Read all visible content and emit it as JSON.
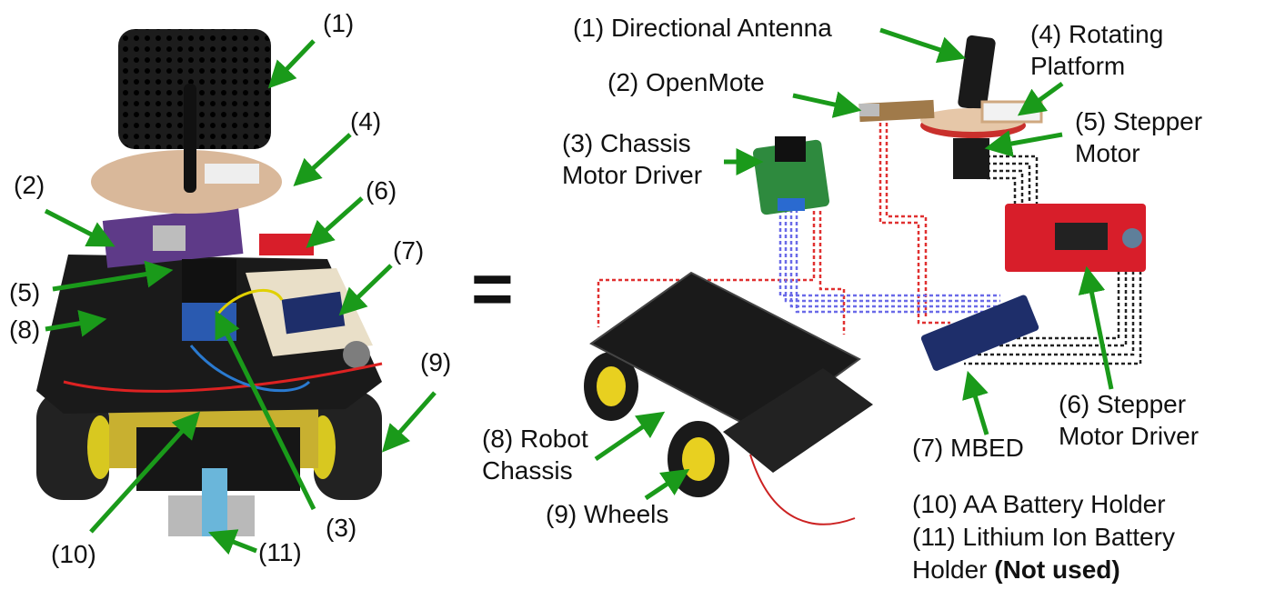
{
  "colors": {
    "arrow": "#1a9a1a",
    "red_wire": "#e03030",
    "blue_wire": "#6a6ae8",
    "black_wire": "#222222",
    "chassis": "#1a1a1a",
    "wheel_yellow": "#e8d020",
    "pcb_red": "#d81e2a",
    "pcb_green": "#2e8a3e",
    "pcb_blue": "#1e2e6a"
  },
  "left_labels": {
    "n1": "(1)",
    "n2": "(2)",
    "n3": "(3)",
    "n4": "(4)",
    "n5": "(5)",
    "n6": "(6)",
    "n7": "(7)",
    "n8": "(8)",
    "n9": "(9)",
    "n10": "(10)",
    "n11": "(11)"
  },
  "equals": "=",
  "right_labels": {
    "antenna": "(1) Directional Antenna",
    "openmote": "(2) OpenMote",
    "chassis_driver_1": "(3) Chassis",
    "chassis_driver_2": "Motor Driver",
    "platform_1": "(4) Rotating",
    "platform_2": "Platform",
    "stepper_1": "(5) Stepper",
    "stepper_2": "Motor",
    "stepper_driver_1": "(6) Stepper",
    "stepper_driver_2": "Motor Driver",
    "mbed": "(7) MBED",
    "robot_chassis_1": "(8) Robot",
    "robot_chassis_2": "Chassis",
    "wheels": "(9) Wheels",
    "aa_battery": "(10) AA Battery Holder",
    "li_battery_1": "(11) Lithium Ion Battery",
    "li_battery_2": "Holder ",
    "not_used": "(Not used)"
  }
}
